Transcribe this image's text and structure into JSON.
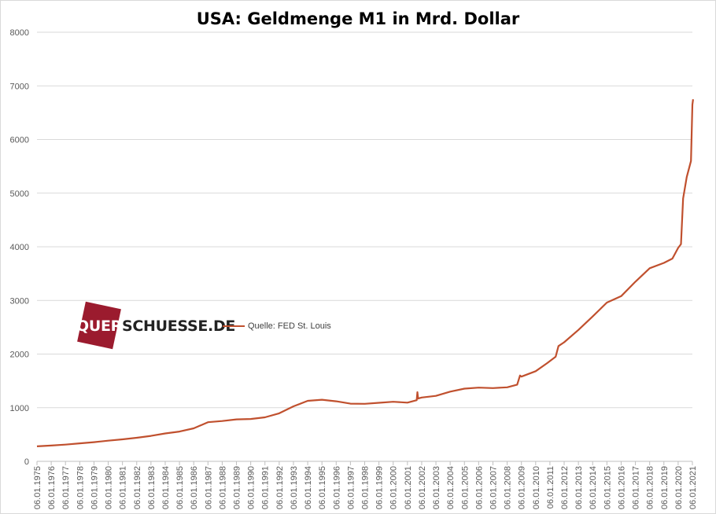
{
  "chart_data": {
    "type": "line",
    "title": "USA: Geldmenge M1 in Mrd. Dollar",
    "xlabel": "",
    "ylabel": "",
    "ylim": [
      0,
      8000
    ],
    "yticks": [
      0,
      1000,
      2000,
      3000,
      4000,
      5000,
      6000,
      7000,
      8000
    ],
    "xlim": [
      1975,
      2021
    ],
    "xtick_labels": [
      "06.01.1975",
      "06.01.1976",
      "06.01.1977",
      "06.01.1978",
      "06.01.1979",
      "06.01.1980",
      "06.01.1981",
      "06.01.1982",
      "06.01.1983",
      "06.01.1984",
      "06.01.1985",
      "06.01.1986",
      "06.01.1987",
      "06.01.1988",
      "06.01.1989",
      "06.01.1990",
      "06.01.1991",
      "06.01.1992",
      "06.01.1993",
      "06.01.1994",
      "06.01.1995",
      "06.01.1996",
      "06.01.1997",
      "06.01.1998",
      "06.01.1999",
      "06.01.2000",
      "06.01.2001",
      "06.01.2002",
      "06.01.2003",
      "06.01.2004",
      "06.01.2005",
      "06.01.2006",
      "06.01.2007",
      "06.01.2008",
      "06.01.2009",
      "06.01.2010",
      "06.01.2011",
      "06.01.2012",
      "06.01.2013",
      "06.01.2014",
      "06.01.2015",
      "06.01.2016",
      "06.01.2017",
      "06.01.2018",
      "06.01.2019",
      "06.01.2020",
      "06.01.2021"
    ],
    "grid": true,
    "legend_position": "center-left",
    "series": [
      {
        "name": "Quelle: FED St. Louis",
        "color": "#c0502e",
        "points": [
          [
            1975,
            280
          ],
          [
            1976,
            295
          ],
          [
            1977,
            312
          ],
          [
            1978,
            335
          ],
          [
            1979,
            358
          ],
          [
            1980,
            385
          ],
          [
            1981,
            410
          ],
          [
            1982,
            440
          ],
          [
            1983,
            475
          ],
          [
            1984,
            520
          ],
          [
            1985,
            555
          ],
          [
            1986,
            615
          ],
          [
            1987,
            730
          ],
          [
            1988,
            752
          ],
          [
            1989,
            782
          ],
          [
            1990,
            790
          ],
          [
            1991,
            820
          ],
          [
            1992,
            895
          ],
          [
            1993,
            1025
          ],
          [
            1994,
            1128
          ],
          [
            1995,
            1148
          ],
          [
            1996,
            1120
          ],
          [
            1997,
            1075
          ],
          [
            1998,
            1072
          ],
          [
            1999,
            1092
          ],
          [
            2000,
            1110
          ],
          [
            2001,
            1095
          ],
          [
            2001.65,
            1140
          ],
          [
            2001.7,
            1290
          ],
          [
            2001.75,
            1170
          ],
          [
            2002,
            1190
          ],
          [
            2003,
            1220
          ],
          [
            2004,
            1300
          ],
          [
            2005,
            1355
          ],
          [
            2006,
            1375
          ],
          [
            2007,
            1365
          ],
          [
            2008,
            1380
          ],
          [
            2008.7,
            1430
          ],
          [
            2008.9,
            1600
          ],
          [
            2009,
            1580
          ],
          [
            2010,
            1680
          ],
          [
            2010.8,
            1830
          ],
          [
            2011.4,
            1950
          ],
          [
            2011.6,
            2150
          ],
          [
            2012,
            2220
          ],
          [
            2013,
            2450
          ],
          [
            2014,
            2700
          ],
          [
            2015,
            2960
          ],
          [
            2016,
            3080
          ],
          [
            2017,
            3350
          ],
          [
            2018,
            3600
          ],
          [
            2019,
            3700
          ],
          [
            2019.6,
            3780
          ],
          [
            2020,
            3980
          ],
          [
            2020.2,
            4050
          ],
          [
            2020.35,
            4900
          ],
          [
            2020.6,
            5300
          ],
          [
            2020.9,
            5600
          ],
          [
            2021.0,
            6650
          ],
          [
            2021.05,
            6750
          ]
        ]
      }
    ],
    "watermark": "QUERSCHUESSE.DE"
  }
}
